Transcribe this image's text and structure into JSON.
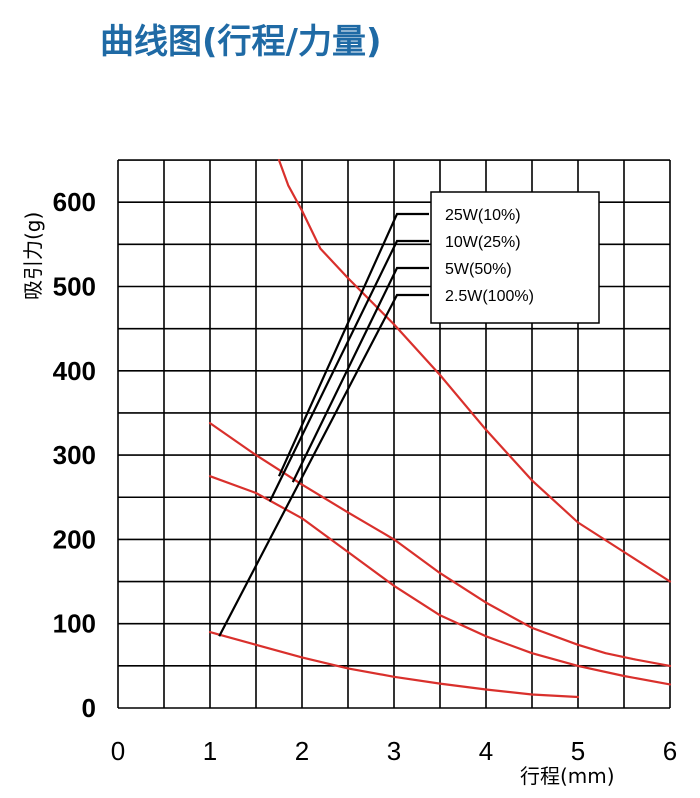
{
  "page": {
    "title": "曲线图(行程/力量)"
  },
  "chart_data": {
    "type": "line",
    "title": "曲线图(行程/力量)",
    "xlabel": "行程(mm)",
    "ylabel": "吸引力(g)",
    "xlim": [
      0,
      6
    ],
    "ylim": [
      0,
      650
    ],
    "x_ticks": [
      "0",
      "1",
      "2",
      "3",
      "4",
      "5",
      "6"
    ],
    "y_ticks": [
      "0",
      "100",
      "200",
      "300",
      "400",
      "500",
      "600"
    ],
    "grid": true,
    "legend_position": "top-right",
    "line_color": "#d9302c",
    "series": [
      {
        "name": "25W(10%)",
        "points": [
          [
            1.75,
            650
          ],
          [
            1.85,
            620
          ],
          [
            2.0,
            590
          ],
          [
            2.2,
            545
          ],
          [
            2.5,
            510
          ],
          [
            3.0,
            455
          ],
          [
            3.5,
            395
          ],
          [
            4.0,
            330
          ],
          [
            4.5,
            270
          ],
          [
            5.0,
            220
          ],
          [
            5.5,
            185
          ],
          [
            6.0,
            150
          ]
        ]
      },
      {
        "name": "10W(25%)",
        "points": [
          [
            1.0,
            338
          ],
          [
            1.5,
            300
          ],
          [
            2.0,
            265
          ],
          [
            2.5,
            232
          ],
          [
            3.0,
            200
          ],
          [
            3.5,
            160
          ],
          [
            4.0,
            125
          ],
          [
            4.5,
            95
          ],
          [
            5.0,
            75
          ],
          [
            5.3,
            65
          ],
          [
            5.6,
            58
          ],
          [
            6.0,
            50
          ]
        ]
      },
      {
        "name": "5W(50%)",
        "points": [
          [
            1.0,
            275
          ],
          [
            1.5,
            255
          ],
          [
            2.0,
            225
          ],
          [
            2.5,
            185
          ],
          [
            3.0,
            145
          ],
          [
            3.5,
            110
          ],
          [
            4.0,
            85
          ],
          [
            4.5,
            65
          ],
          [
            5.0,
            50
          ],
          [
            5.5,
            38
          ],
          [
            6.0,
            28
          ]
        ]
      },
      {
        "name": "2.5W(100%)",
        "points": [
          [
            1.0,
            90
          ],
          [
            1.5,
            75
          ],
          [
            2.0,
            60
          ],
          [
            2.5,
            47
          ],
          [
            3.0,
            37
          ],
          [
            3.5,
            29
          ],
          [
            4.0,
            22
          ],
          [
            4.5,
            16
          ],
          [
            5.0,
            13
          ]
        ]
      }
    ],
    "leader_lines": [
      {
        "series": "25W(10%)",
        "from": [
          1.75,
          275
        ]
      },
      {
        "series": "10W(25%)",
        "from": [
          1.65,
          245
        ]
      },
      {
        "series": "5W(50%)",
        "from": [
          1.9,
          268
        ]
      },
      {
        "series": "2.5W(100%)",
        "from": [
          1.1,
          85
        ]
      }
    ]
  }
}
